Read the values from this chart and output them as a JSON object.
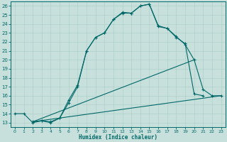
{
  "xlabel": "Humidex (Indice chaleur)",
  "bg_color": "#c8e0dc",
  "line_color": "#006868",
  "grid_color": "#a8ccc8",
  "xlim": [
    -0.5,
    23.5
  ],
  "ylim": [
    12.5,
    26.5
  ],
  "xticks": [
    0,
    1,
    2,
    3,
    4,
    5,
    6,
    7,
    8,
    9,
    10,
    11,
    12,
    13,
    14,
    15,
    16,
    17,
    18,
    19,
    20,
    21,
    22,
    23
  ],
  "yticks": [
    13,
    14,
    15,
    16,
    17,
    18,
    19,
    20,
    21,
    22,
    23,
    24,
    25,
    26
  ],
  "curve1_x": [
    0,
    1,
    2,
    3,
    4,
    5,
    6,
    7,
    8,
    9,
    10,
    11,
    12,
    13,
    14,
    15,
    16,
    17,
    18,
    19,
    20,
    21
  ],
  "curve1_y": [
    14.0,
    14.0,
    13.0,
    13.2,
    13.0,
    13.5,
    15.5,
    17.2,
    21.0,
    22.5,
    23.0,
    24.5,
    25.2,
    25.2,
    26.0,
    26.2,
    23.8,
    23.5,
    22.5,
    21.8,
    16.2,
    16.0
  ],
  "curve2_x": [
    2,
    3,
    4,
    5,
    6,
    7,
    8,
    9,
    10,
    11,
    12,
    13,
    14,
    15,
    16,
    17,
    18,
    19,
    20,
    21,
    22,
    23
  ],
  "curve2_y": [
    13.1,
    13.2,
    13.1,
    13.5,
    15.2,
    17.0,
    21.0,
    22.5,
    23.0,
    24.5,
    25.3,
    25.2,
    26.0,
    26.2,
    23.7,
    23.5,
    22.6,
    21.7,
    20.0,
    16.7,
    16.0,
    16.0
  ],
  "line3_x": [
    2,
    20
  ],
  "line3_y": [
    13.1,
    20.0
  ],
  "line4_x": [
    2,
    23
  ],
  "line4_y": [
    13.1,
    16.0
  ]
}
